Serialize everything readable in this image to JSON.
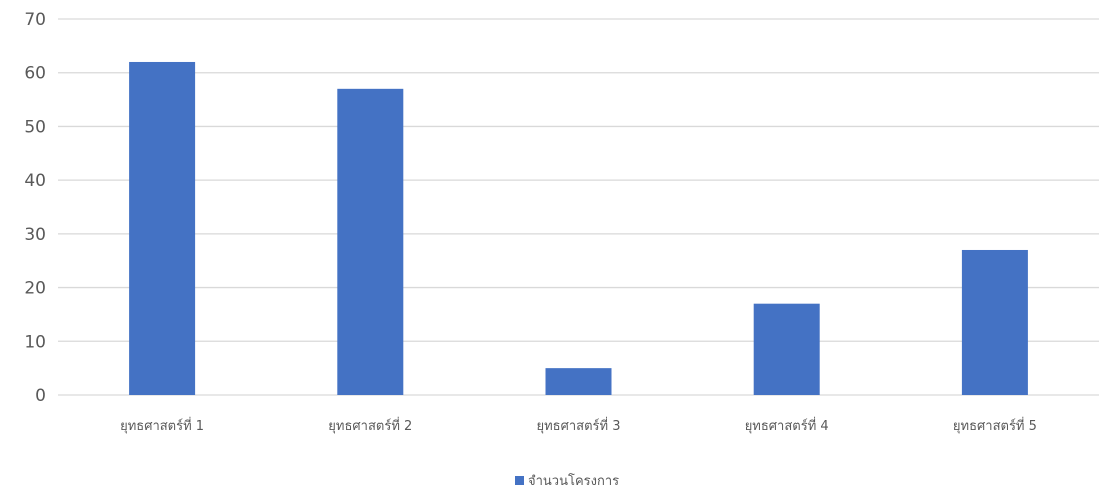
{
  "chart_data": {
    "type": "bar",
    "categories": [
      "ยุทธศาสตร์ที่ 1",
      "ยุทธศาสตร์ที่ 2",
      "ยุทธศาสตร์ที่ 3",
      "ยุทธศาสตร์ที่ 4",
      "ยุทธศาสตร์ที่ 5"
    ],
    "series": [
      {
        "name": "จำนวนโครงการ",
        "values": [
          62,
          57,
          5,
          17,
          27
        ],
        "color": "#4472c4"
      }
    ],
    "ylim": [
      0,
      70
    ],
    "yticks": [
      0,
      10,
      20,
      30,
      40,
      50,
      60,
      70
    ],
    "grid": true,
    "legend_position": "bottom-center",
    "gridline_color": "#d9d9d9",
    "text_color": "#595959"
  }
}
